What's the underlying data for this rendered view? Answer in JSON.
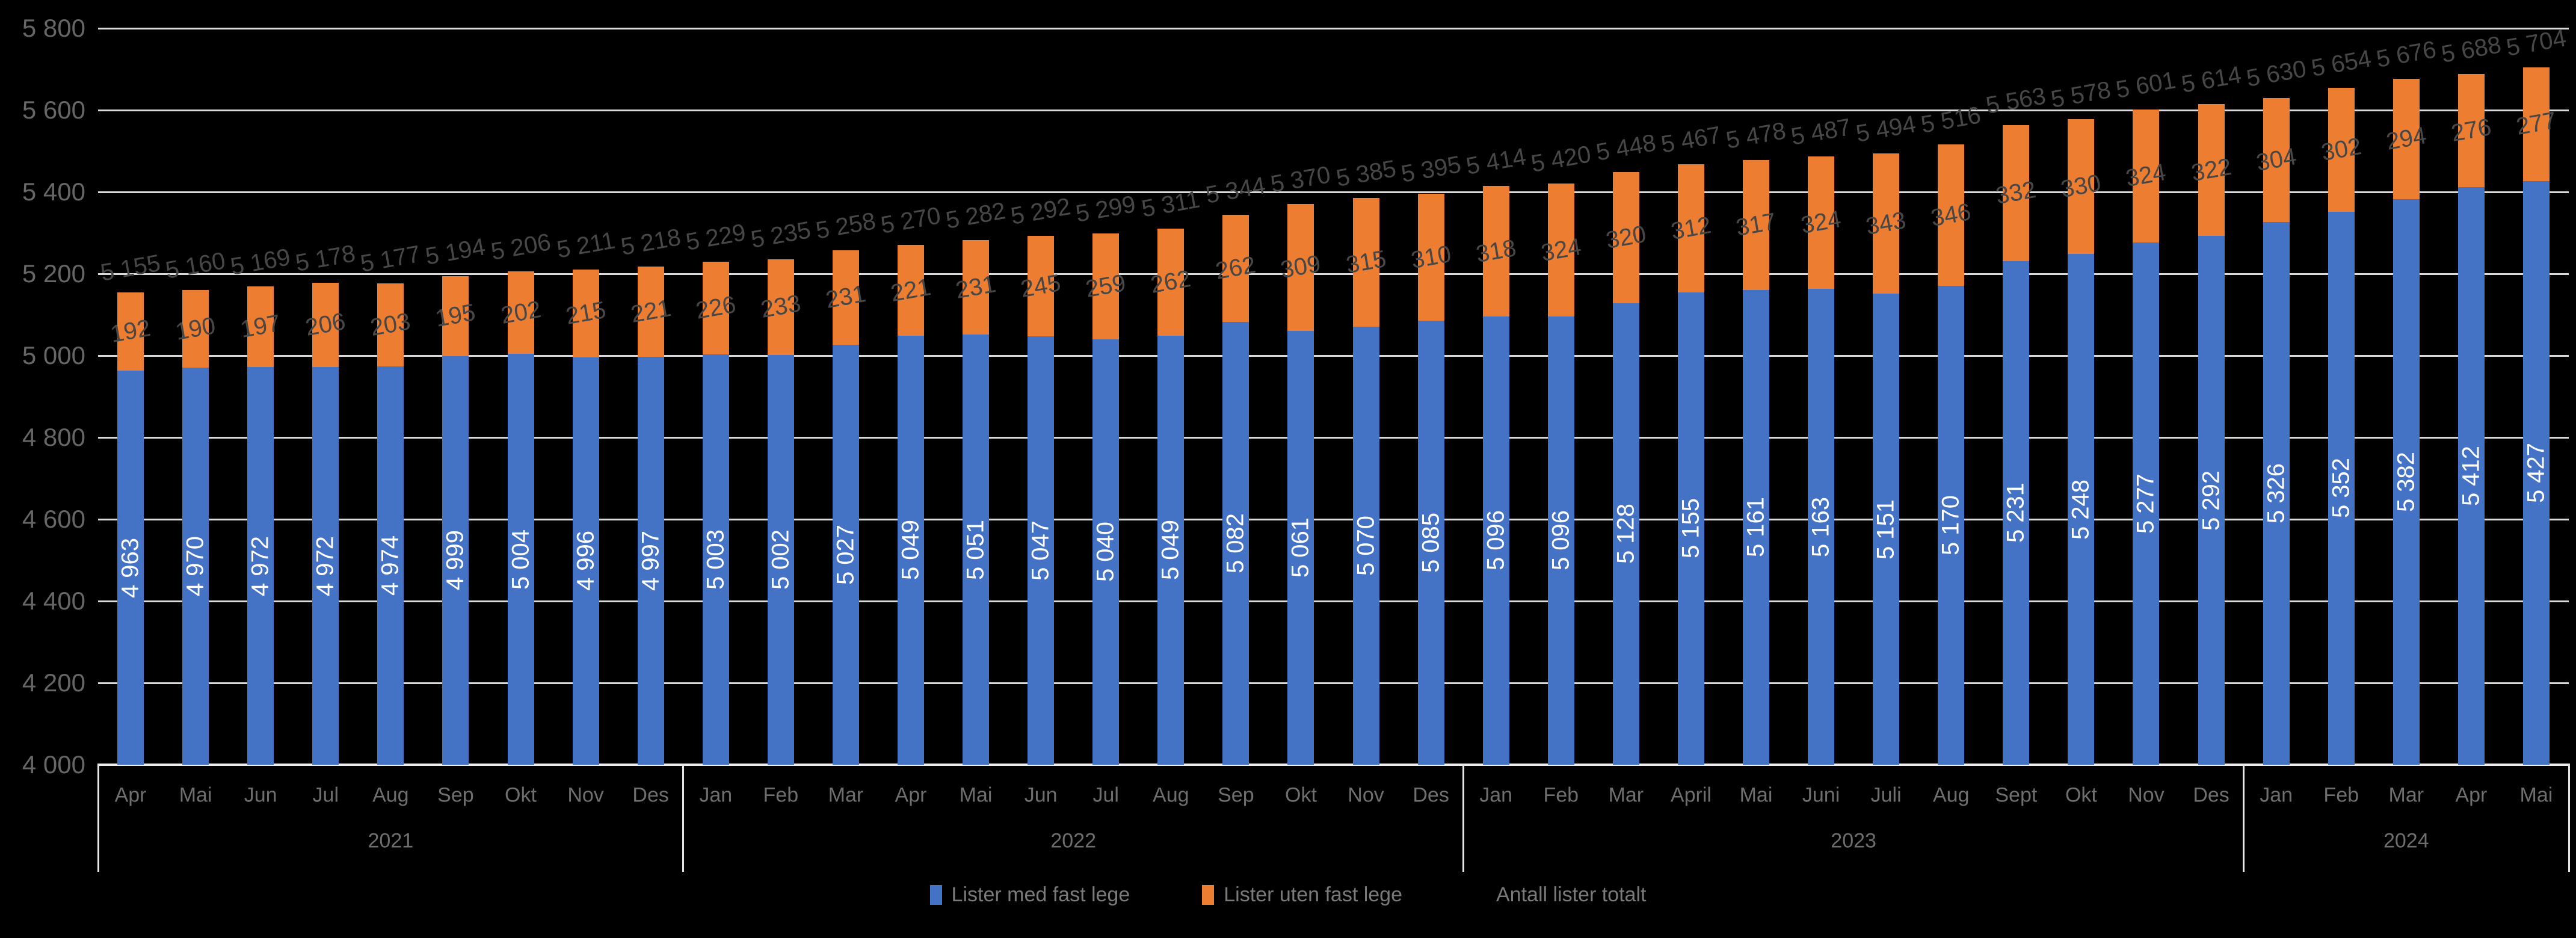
{
  "chart_data": {
    "type": "bar",
    "stacked": true,
    "title": "",
    "background": "#000000",
    "ylim": [
      4000,
      5800
    ],
    "ytick_step": 200,
    "yticks": [
      {
        "value": 4000,
        "label": "4 000"
      },
      {
        "value": 4200,
        "label": "4 200"
      },
      {
        "value": 4400,
        "label": "4 400"
      },
      {
        "value": 4600,
        "label": "4 600"
      },
      {
        "value": 4800,
        "label": "4 800"
      },
      {
        "value": 5000,
        "label": "5 000"
      },
      {
        "value": 5200,
        "label": "5 200"
      },
      {
        "value": 5400,
        "label": "5 400"
      },
      {
        "value": 5600,
        "label": "5 600"
      },
      {
        "value": 5800,
        "label": "5 800"
      }
    ],
    "grid": true,
    "legend_position": "bottom",
    "colors": {
      "med": "#4472C4",
      "uten": "#ED7D31",
      "gridline": "#D9D9D9",
      "axis_line": "#EDEDED",
      "data_label_dark": "#474747",
      "data_label_light": "#FFFFFF",
      "axis_text": "#6E6E6E"
    },
    "series": [
      {
        "name": "Lister med fast lege",
        "color": "#4472C4"
      },
      {
        "name": "Lister uten fast lege",
        "color": "#ED7D31"
      },
      {
        "name": "Antall lister totalt",
        "color": "#000000"
      }
    ],
    "groups": [
      {
        "year": "2021",
        "months": [
          "Apr",
          "Mai",
          "Jun",
          "Jul",
          "Aug",
          "Sep",
          "Okt",
          "Nov",
          "Des"
        ],
        "med": [
          4963,
          4970,
          4972,
          4972,
          4974,
          4999,
          5004,
          4996,
          4997
        ],
        "uten": [
          192,
          190,
          197,
          206,
          203,
          195,
          202,
          215,
          221
        ],
        "totalt": [
          5155,
          5160,
          5169,
          5178,
          5177,
          5194,
          5206,
          5211,
          5218
        ]
      },
      {
        "year": "2022",
        "months": [
          "Jan",
          "Feb",
          "Mar",
          "Apr",
          "Mai",
          "Jun",
          "Jul",
          "Aug",
          "Sep",
          "Okt",
          "Nov",
          "Des"
        ],
        "med": [
          5003,
          5002,
          5027,
          5049,
          5051,
          5047,
          5040,
          5049,
          5082,
          5061,
          5070,
          5085
        ],
        "uten": [
          226,
          233,
          231,
          221,
          231,
          245,
          259,
          262,
          262,
          309,
          315,
          310
        ],
        "totalt": [
          5229,
          5235,
          5258,
          5270,
          5282,
          5292,
          5299,
          5311,
          5344,
          5370,
          5385,
          5395
        ]
      },
      {
        "year": "2023",
        "months": [
          "Jan",
          "Feb",
          "Mar",
          "April",
          "Mai",
          "Juni",
          "Juli",
          "Aug",
          "Sept",
          "Okt",
          "Nov",
          "Des"
        ],
        "med": [
          5096,
          5096,
          5128,
          5155,
          5161,
          5163,
          5151,
          5170,
          5231,
          5248,
          5277,
          5292
        ],
        "uten": [
          318,
          324,
          320,
          312,
          317,
          324,
          343,
          346,
          332,
          330,
          324,
          322
        ],
        "totalt": [
          5414,
          5420,
          5448,
          5467,
          5478,
          5487,
          5494,
          5516,
          5563,
          5578,
          5601,
          5614
        ]
      },
      {
        "year": "2024",
        "months": [
          "Jan",
          "Feb",
          "Mar",
          "Apr",
          "Mai"
        ],
        "med": [
          5326,
          5352,
          5382,
          5412,
          5427
        ],
        "uten": [
          304,
          302,
          294,
          276,
          277
        ],
        "totalt": [
          5630,
          5654,
          5676,
          5688,
          5704
        ]
      }
    ]
  }
}
